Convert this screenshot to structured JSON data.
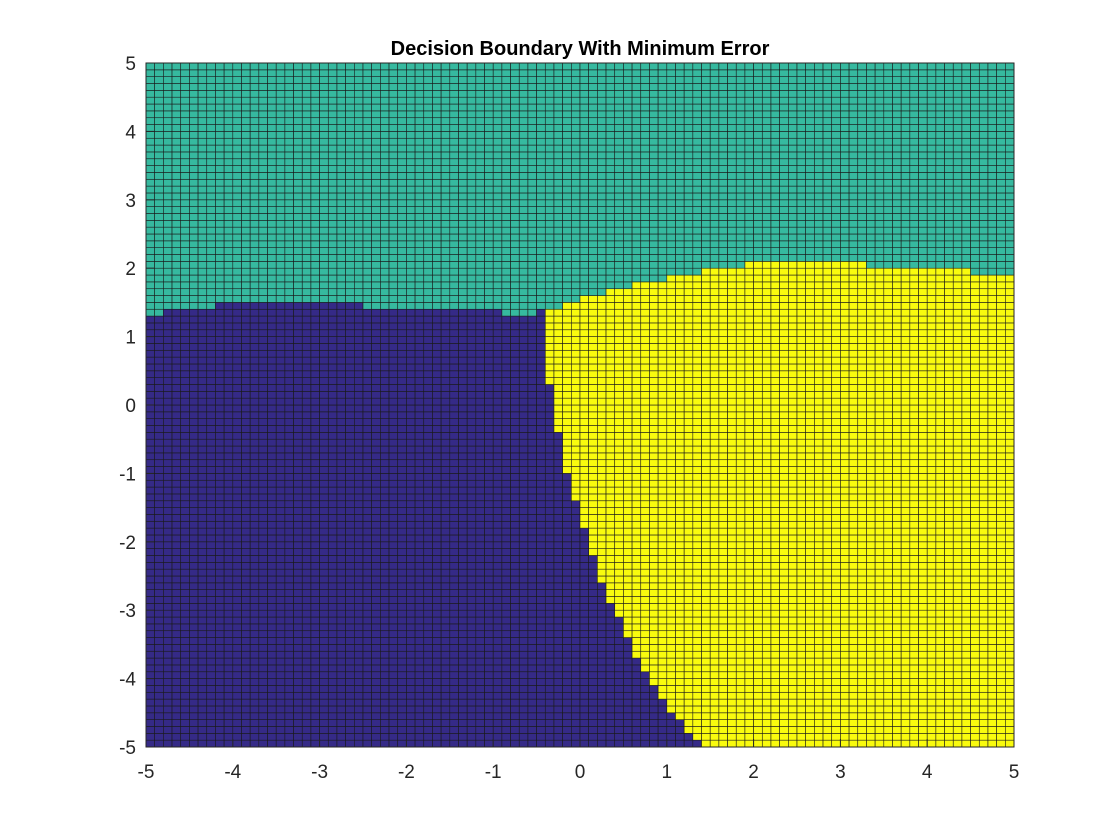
{
  "chart_data": {
    "type": "heatmap",
    "title": "Decision Boundary With Minimum Error",
    "xlabel": "",
    "ylabel": "",
    "xlim": [
      -5,
      5
    ],
    "ylim": [
      -5,
      5
    ],
    "xticks": [
      -5,
      -4,
      -3,
      -2,
      -1,
      0,
      1,
      2,
      3,
      4,
      5
    ],
    "yticks": [
      -5,
      -4,
      -3,
      -2,
      -1,
      0,
      1,
      2,
      3,
      4,
      5
    ],
    "grid": false,
    "cell_step": 0.1,
    "classes": [
      {
        "id": 1,
        "color": "#352a87"
      },
      {
        "id": 2,
        "color": "#36b99f"
      },
      {
        "id": 3,
        "color": "#f9fb0e"
      }
    ],
    "cell_edge_color": "#1a1a1a",
    "class2_lower_boundary": {
      "x": [
        -5.0,
        -4.6,
        -3.8,
        -1.1,
        -0.6,
        -0.4,
        -0.1,
        0.1,
        0.5,
        0.8,
        1.2,
        1.6,
        2.2,
        4.4,
        4.7,
        5.0
      ],
      "y": [
        1.3,
        1.4,
        1.5,
        1.4,
        1.3,
        1.4,
        1.5,
        1.6,
        1.7,
        1.8,
        1.9,
        2.0,
        2.1,
        2.0,
        1.9,
        1.9
      ]
    },
    "class1_class3_boundary": {
      "y": [
        1.3,
        0.6,
        0.0,
        -0.8,
        -1.2,
        -1.6,
        -2.0,
        -2.4,
        -2.8,
        -3.2,
        -3.6,
        -4.0,
        -4.4,
        -4.7,
        -5.0
      ],
      "x": [
        -0.4,
        -0.4,
        -0.3,
        -0.2,
        -0.1,
        0.0,
        0.1,
        0.2,
        0.3,
        0.5,
        0.6,
        0.8,
        1.0,
        1.2,
        1.4
      ]
    }
  }
}
